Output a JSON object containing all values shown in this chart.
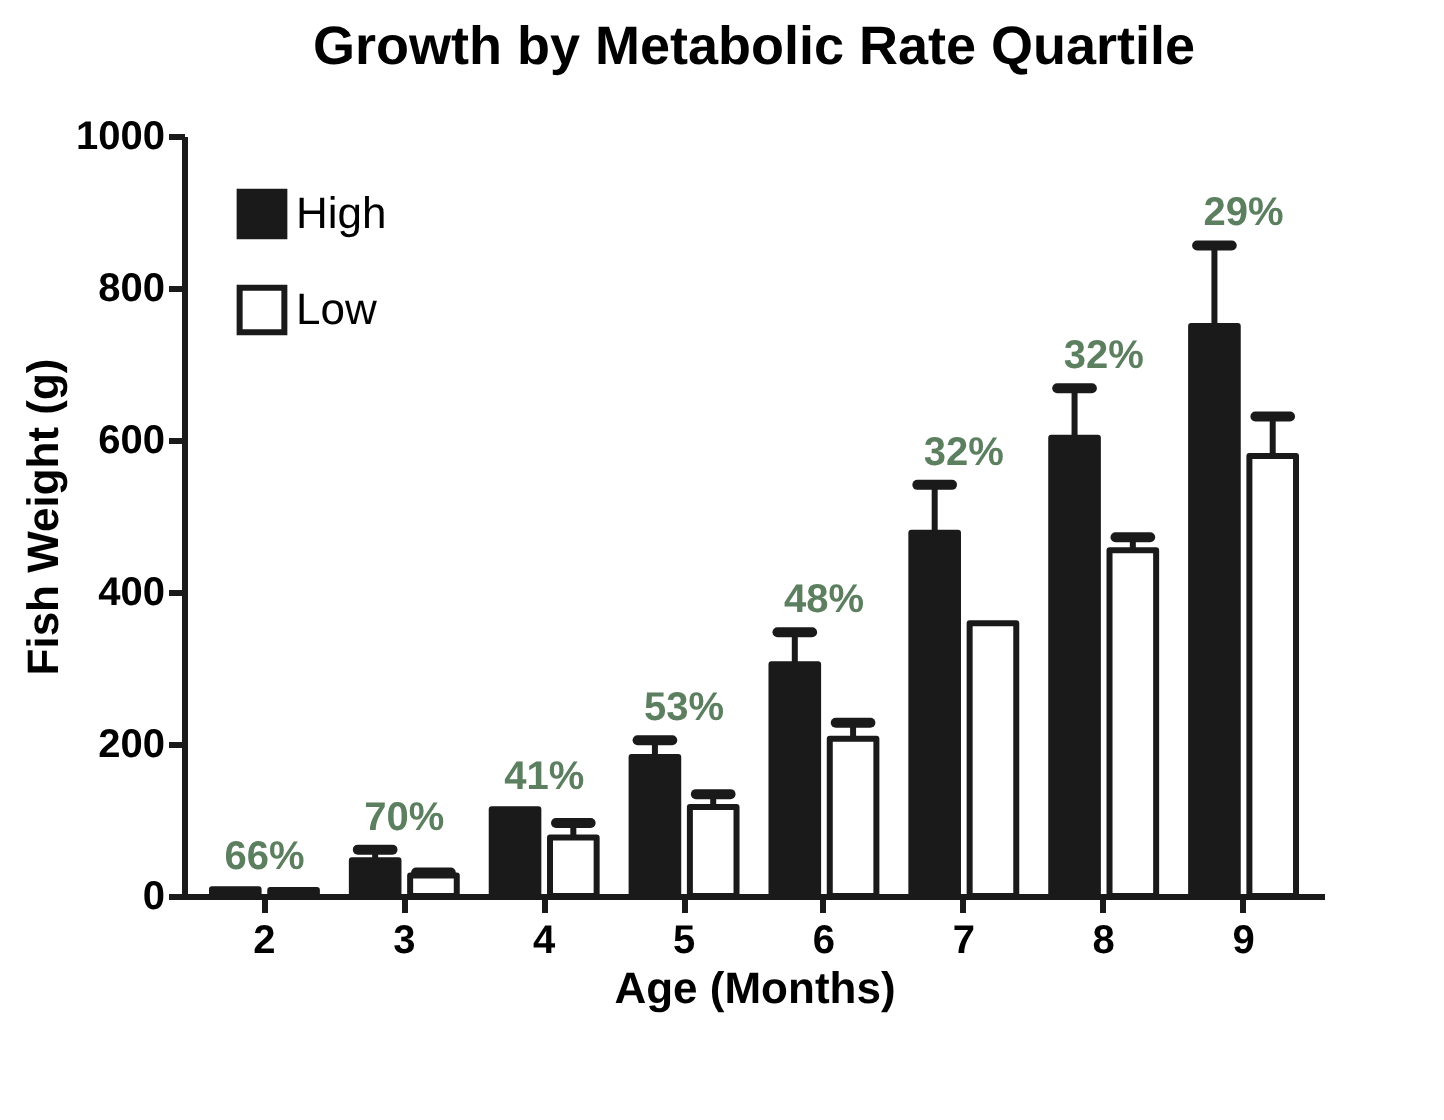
{
  "chart_data": {
    "type": "bar",
    "title": "Growth by Metabolic Rate Quartile",
    "xlabel": "Age (Months)",
    "ylabel": "Fish Weight (g)",
    "categories": [
      "2",
      "3",
      "4",
      "5",
      "6",
      "7",
      "8",
      "9"
    ],
    "series": [
      {
        "name": "High",
        "color": "#1a1a1a",
        "values": [
          9,
          47,
          114,
          183,
          305,
          478,
          603,
          750
        ],
        "errors": [
          null,
          [
            47,
            61
          ],
          null,
          [
            183,
            205
          ],
          [
            305,
            347
          ],
          [
            478,
            541
          ],
          [
            603,
            668
          ],
          [
            750,
            856
          ]
        ]
      },
      {
        "name": "Low",
        "color": "#ffffff",
        "values": [
          8,
          27,
          77,
          117,
          207,
          359,
          455,
          579
        ],
        "errors": [
          null,
          [
            27,
            31
          ],
          [
            77,
            96
          ],
          [
            117,
            134
          ],
          [
            207,
            228
          ],
          null,
          [
            455,
            472
          ],
          [
            579,
            631
          ]
        ]
      }
    ],
    "ylim": [
      0,
      1000
    ],
    "yticks": [
      0,
      200,
      400,
      600,
      800,
      1000
    ],
    "grid": false,
    "legend": "top left",
    "annotations": [
      {
        "text": "66%",
        "x": "2",
        "y": 9
      },
      {
        "text": "70%",
        "x": "3",
        "y": 47
      },
      {
        "text": "41%",
        "x": "4",
        "y": 114
      },
      {
        "text": "53%",
        "x": "5",
        "y": 183
      },
      {
        "text": "48%",
        "x": "6",
        "y": 305
      },
      {
        "text": "32%",
        "x": "7",
        "y": 478
      },
      {
        "text": "32%",
        "x": "8",
        "y": 603
      },
      {
        "text": "29%",
        "x": "9",
        "y": 750
      }
    ]
  }
}
